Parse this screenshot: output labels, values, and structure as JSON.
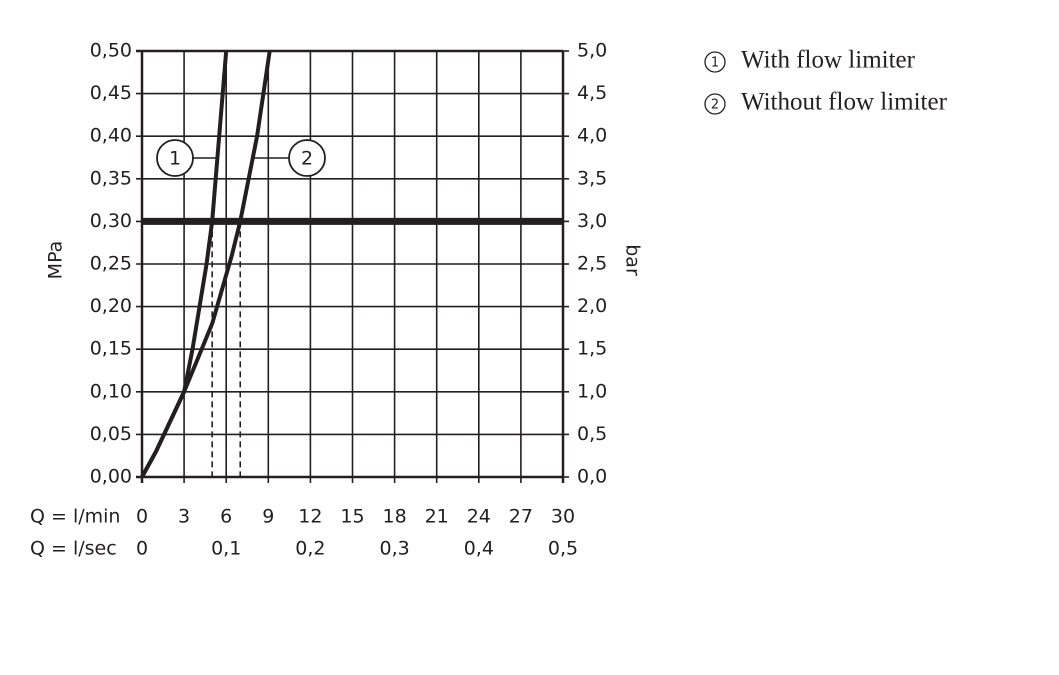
{
  "chart_data": {
    "type": "line",
    "xlabel": "Q = l/min",
    "x2label": "Q = l/sec",
    "ylabel": "MPa",
    "y2label": "bar",
    "xlim": [
      0,
      30
    ],
    "xticks": [
      0,
      3,
      6,
      9,
      12,
      15,
      18,
      21,
      24,
      27,
      30
    ],
    "x2lim": [
      0,
      0.5
    ],
    "x2ticks": [
      0,
      {
        "value": 0.1,
        "label": "0,1"
      },
      {
        "value": 0.2,
        "label": "0,2"
      },
      {
        "value": 0.3,
        "label": "0,3"
      },
      {
        "value": 0.4,
        "label": "0,4"
      },
      {
        "value": 0.5,
        "label": "0,5"
      }
    ],
    "ylim": [
      0,
      0.5
    ],
    "yticks": [
      {
        "value": 0,
        "label": "0,00"
      },
      {
        "value": 0.05,
        "label": "0,05"
      },
      {
        "value": 0.1,
        "label": "0,10"
      },
      {
        "value": 0.15,
        "label": "0,15"
      },
      {
        "value": 0.2,
        "label": "0,20"
      },
      {
        "value": 0.25,
        "label": "0,25"
      },
      {
        "value": 0.3,
        "label": "0,30"
      },
      {
        "value": 0.35,
        "label": "0,35"
      },
      {
        "value": 0.4,
        "label": "0,40"
      },
      {
        "value": 0.45,
        "label": "0,45"
      },
      {
        "value": 0.5,
        "label": "0,50"
      }
    ],
    "y2lim": [
      0,
      5
    ],
    "y2ticks": [
      {
        "value": 0,
        "label": "0,0"
      },
      {
        "value": 0.5,
        "label": "0,5"
      },
      {
        "value": 1,
        "label": "1,0"
      },
      {
        "value": 1.5,
        "label": "1,5"
      },
      {
        "value": 2,
        "label": "2,0"
      },
      {
        "value": 2.5,
        "label": "2,5"
      },
      {
        "value": 3,
        "label": "3,0"
      },
      {
        "value": 3.5,
        "label": "3,5"
      },
      {
        "value": 4,
        "label": "4,0"
      },
      {
        "value": 4.5,
        "label": "4,5"
      },
      {
        "value": 5,
        "label": "5,0"
      }
    ],
    "grid": true,
    "reference_y": 0.3,
    "series": [
      {
        "label": "1",
        "name": "With flow limiter",
        "color": "#231f20",
        "x": [
          0,
          1,
          2,
          3,
          3.6,
          4.1,
          4.6,
          5.0,
          5.5,
          6.0
        ],
        "values": [
          0,
          0.03,
          0.065,
          0.1,
          0.15,
          0.2,
          0.25,
          0.3,
          0.4,
          0.5
        ]
      },
      {
        "label": "2",
        "name": "Without flow limiter",
        "color": "#231f20",
        "x": [
          0,
          1,
          2,
          3,
          4,
          5,
          5.7,
          6.4,
          7.0,
          8.2,
          9.1
        ],
        "values": [
          0,
          0.03,
          0.065,
          0.1,
          0.14,
          0.18,
          0.22,
          0.26,
          0.3,
          0.4,
          0.5
        ]
      }
    ]
  }
}
